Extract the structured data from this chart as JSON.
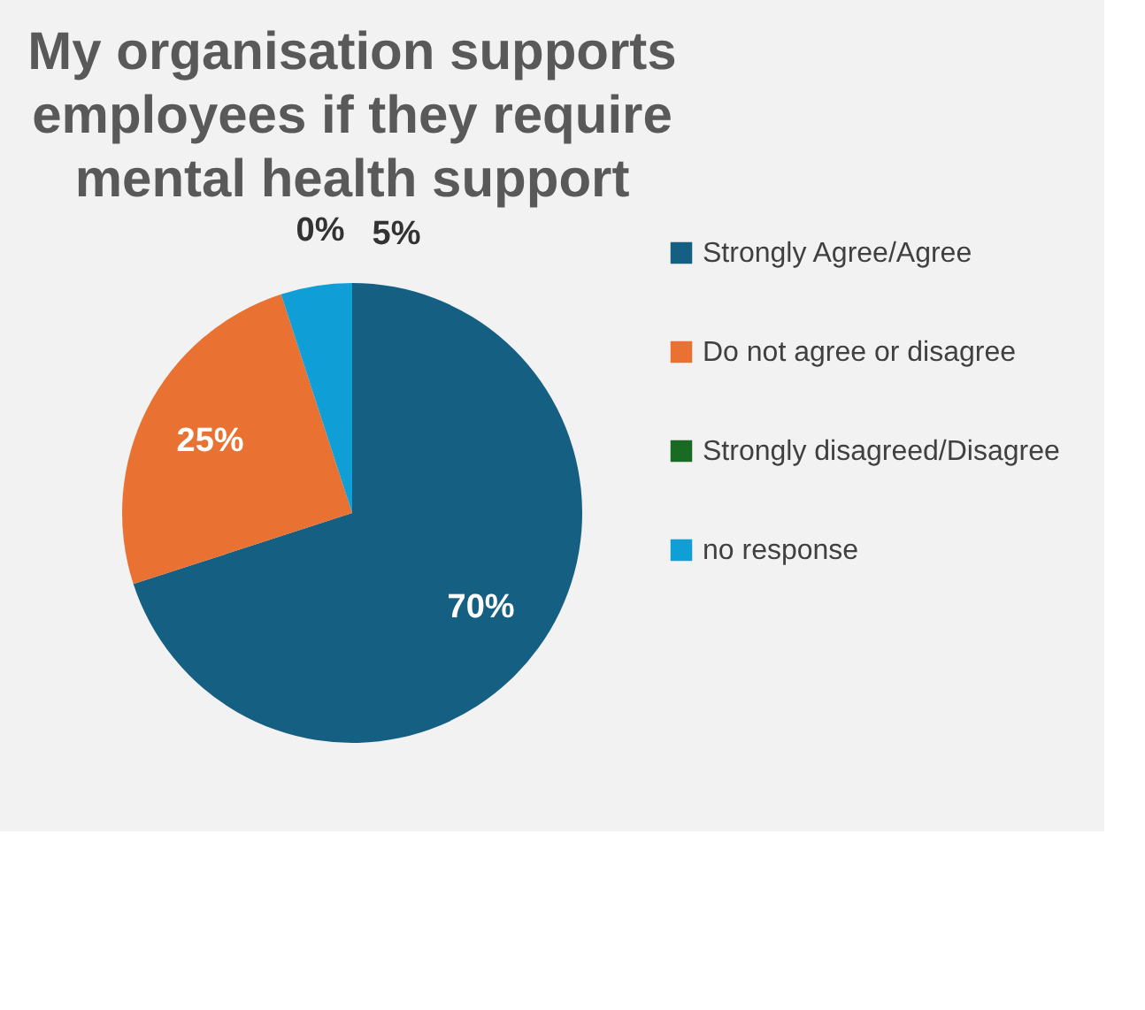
{
  "chart_data": {
    "type": "pie",
    "title": "My organisation supports employees if they require mental health support",
    "categories": [
      "Strongly Agree/Agree",
      "Do not agree or disagree",
      "Strongly disagreed/Disagree",
      "no response"
    ],
    "values": [
      70,
      25,
      0,
      5
    ],
    "value_labels": [
      "70%",
      "25%",
      "0%",
      "5%"
    ],
    "colors": [
      "#156082",
      "#e97132",
      "#196b24",
      "#0f9ed5"
    ],
    "legend": "right"
  }
}
